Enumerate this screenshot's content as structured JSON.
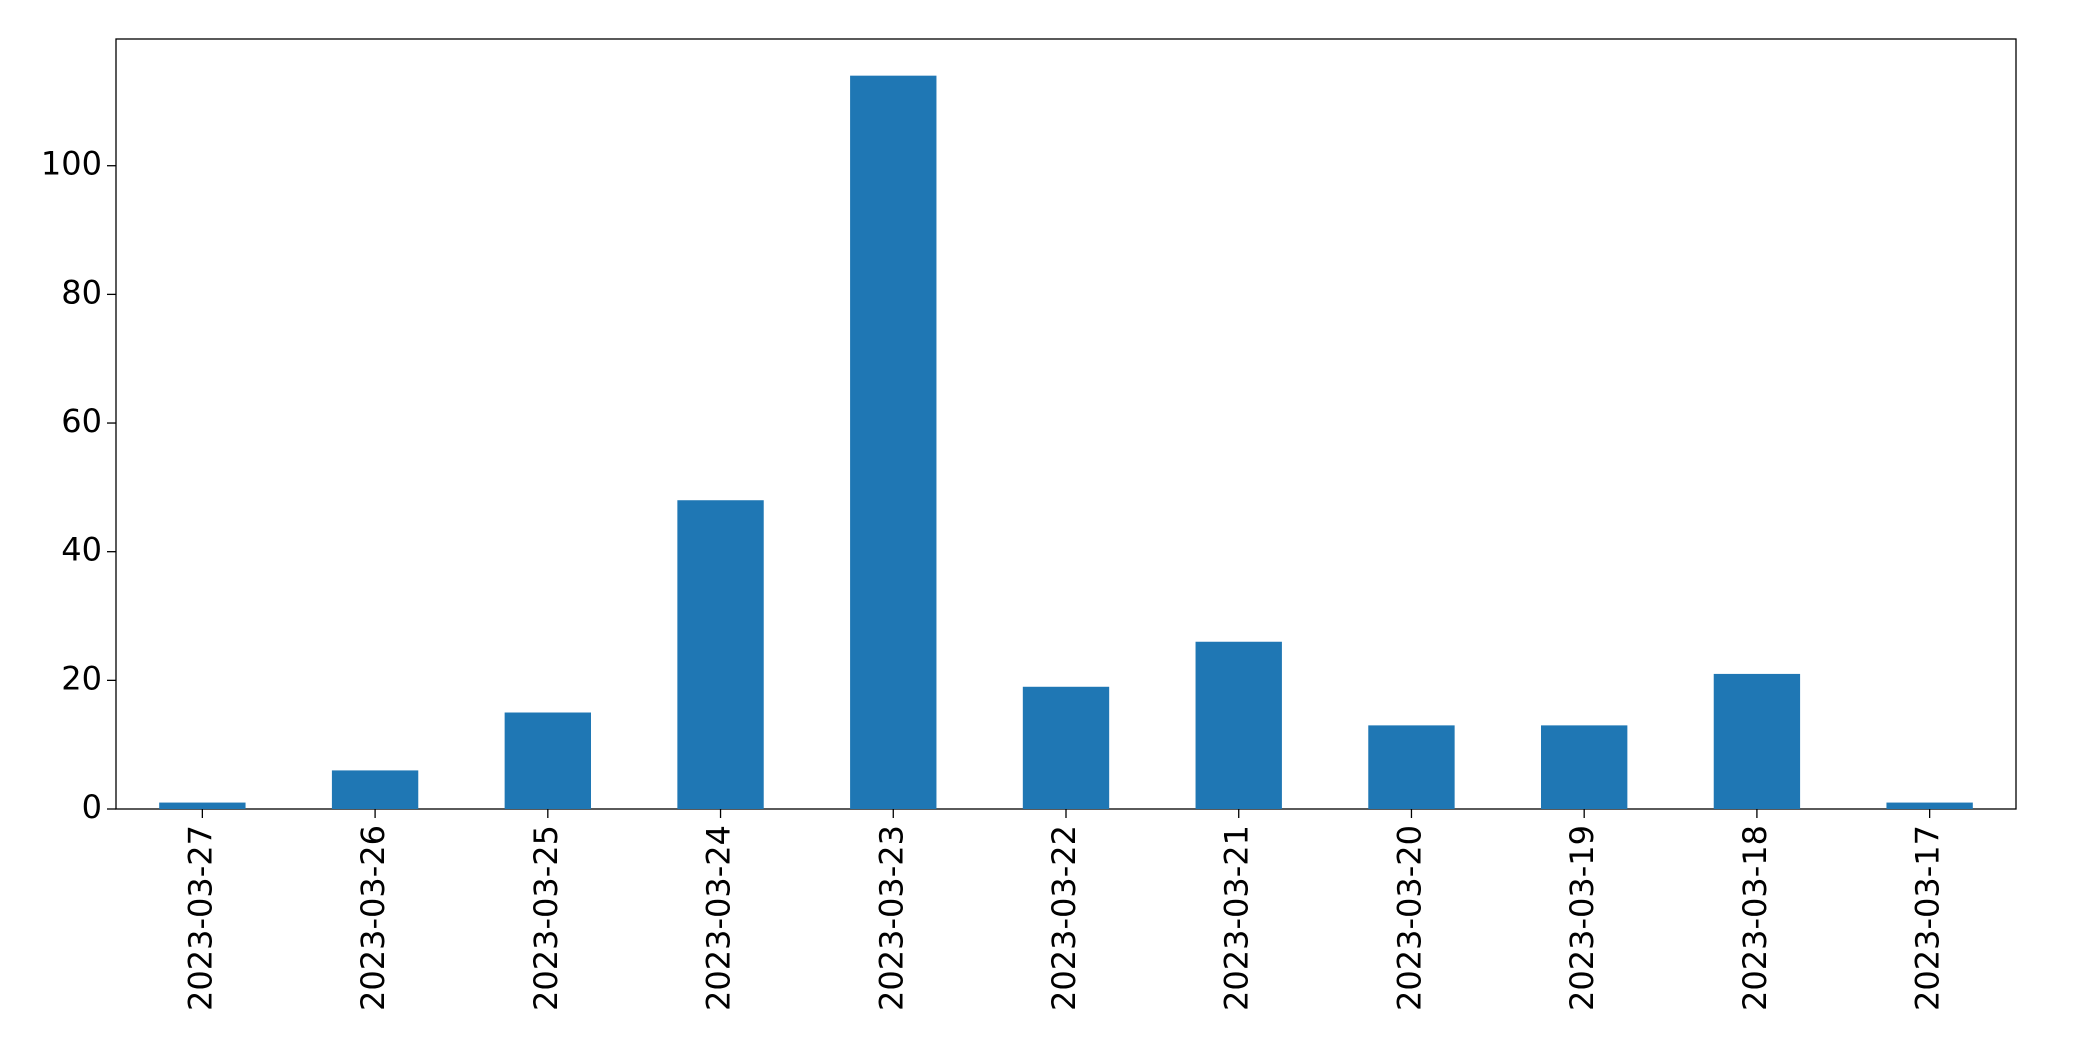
{
  "chart_data": {
    "type": "bar",
    "categories": [
      "2023-03-27",
      "2023-03-26",
      "2023-03-25",
      "2023-03-24",
      "2023-03-23",
      "2023-03-22",
      "2023-03-21",
      "2023-03-20",
      "2023-03-19",
      "2023-03-18",
      "2023-03-17"
    ],
    "values": [
      1,
      6,
      15,
      48,
      114,
      19,
      26,
      13,
      13,
      21,
      1
    ],
    "color": "#1f77b4",
    "ylim": [
      0,
      119.7
    ],
    "yticks": [
      0,
      20,
      40,
      60,
      80,
      100
    ],
    "grid": false
  }
}
